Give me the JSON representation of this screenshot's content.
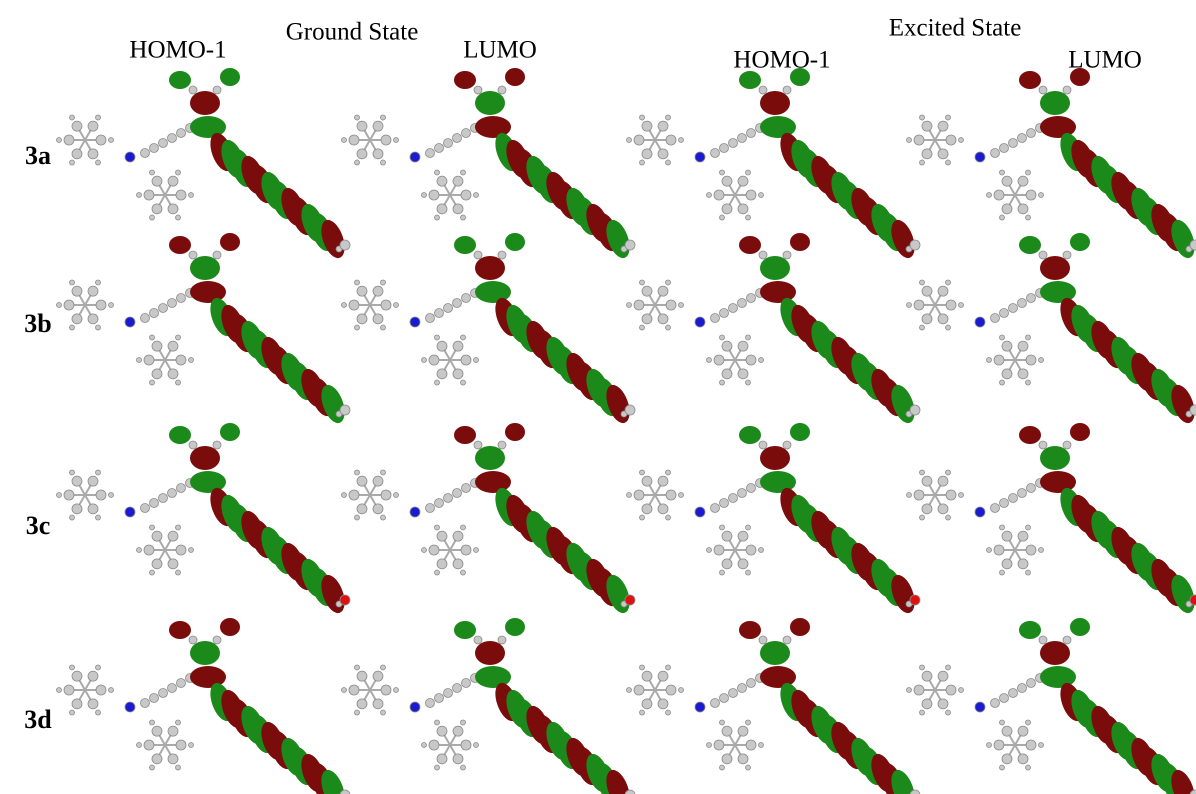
{
  "ground_state": {
    "title": "Ground State",
    "columns": [
      "HOMO-1",
      "LUMO"
    ]
  },
  "excited_state": {
    "title": "Excited State",
    "columns": [
      "HOMO-1",
      "LUMO"
    ]
  },
  "rows": [
    "3a",
    "3b",
    "3c",
    "3d"
  ]
}
